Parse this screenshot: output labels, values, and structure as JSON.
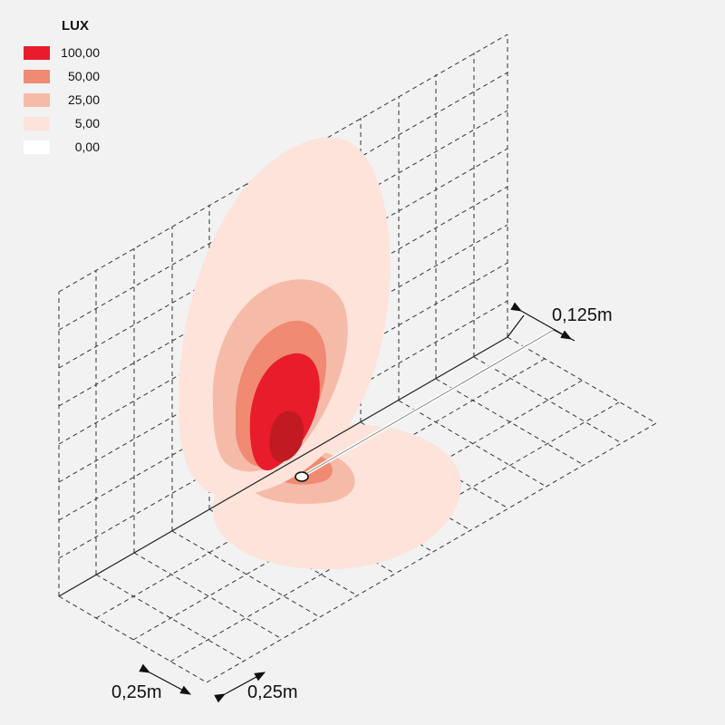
{
  "legend": {
    "title": "LUX",
    "items": [
      {
        "value": "100,00",
        "color": "#e81c2b"
      },
      {
        "value": "50,00",
        "color": "#f08a72"
      },
      {
        "value": "25,00",
        "color": "#f6bba8"
      },
      {
        "value": "5,00",
        "color": "#fde3da"
      },
      {
        "value": "0,00",
        "color": "#ffffff"
      }
    ]
  },
  "dimensions": {
    "depth": "0,125m",
    "grid_x": "0,25m",
    "grid_y": "0,25m"
  },
  "colors": {
    "background": "#f2f2f2",
    "hotspot": "#c11a22",
    "grid_line": "#333333"
  }
}
